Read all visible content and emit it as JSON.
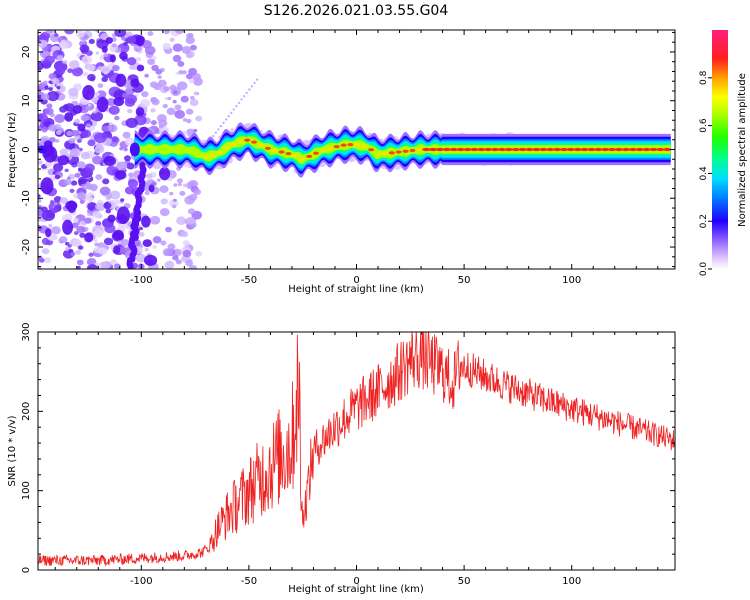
{
  "title": "S126.2026.021.03.55.G04",
  "colors": {
    "snr_line": "#ee2222",
    "axis": "#000000",
    "background": "#ffffff"
  },
  "chart_data": [
    {
      "type": "heatmap",
      "name": "spectrogram",
      "xlabel": "Height of straight line (km)",
      "ylabel": "Frequency (Hz)",
      "xlim": [
        -148,
        148
      ],
      "ylim": [
        -24.5,
        24.5
      ],
      "xticks": [
        -100,
        -50,
        0,
        50,
        100
      ],
      "yticks": [
        -20,
        -10,
        0,
        10,
        20
      ],
      "colorbar": {
        "label": "Normalized spectral amplitude",
        "range": [
          0,
          1
        ],
        "ticks": [
          "0.0",
          "0.2",
          "0.4",
          "0.6",
          "0.8"
        ],
        "tick_values": [
          0.0,
          0.2,
          0.4,
          0.6,
          0.8
        ]
      },
      "ridge": {
        "x": [
          -100,
          -90,
          -80,
          -75,
          -70,
          -65,
          -60,
          -55,
          -50,
          -45,
          -40,
          -35,
          -30,
          -25,
          -20,
          -15,
          -10,
          -5,
          0,
          5,
          10,
          20,
          30,
          50,
          100,
          145
        ],
        "freq_hz": [
          0,
          0,
          0,
          -0.5,
          -1.5,
          -1,
          0.5,
          1.5,
          2,
          1,
          0,
          -0.5,
          -1,
          -2,
          -1,
          0,
          0.5,
          1,
          1,
          0.5,
          -1,
          -0.5,
          0,
          0,
          0,
          0
        ]
      }
    },
    {
      "type": "line",
      "name": "snr",
      "xlabel": "Height of straight line (km)",
      "ylabel": "SNR (10 * v/v)",
      "xlim": [
        -148,
        148
      ],
      "ylim": [
        0,
        300
      ],
      "xticks": [
        -100,
        -50,
        0,
        50,
        100
      ],
      "yticks": [
        0,
        100,
        200,
        300
      ],
      "envelope": {
        "x": [
          -148,
          -120,
          -100,
          -80,
          -72,
          -68,
          -65,
          -60,
          -55,
          -50,
          -45,
          -40,
          -35,
          -30,
          -28,
          -27,
          -25,
          -20,
          -10,
          0,
          10,
          20,
          25,
          30,
          35,
          40,
          45,
          48,
          55,
          70,
          90,
          110,
          130,
          148
        ],
        "snr": [
          12,
          12,
          15,
          18,
          22,
          30,
          50,
          70,
          85,
          100,
          115,
          130,
          145,
          160,
          210,
          250,
          60,
          150,
          180,
          205,
          225,
          250,
          265,
          270,
          260,
          250,
          235,
          260,
          250,
          232,
          212,
          195,
          178,
          163
        ]
      }
    }
  ]
}
